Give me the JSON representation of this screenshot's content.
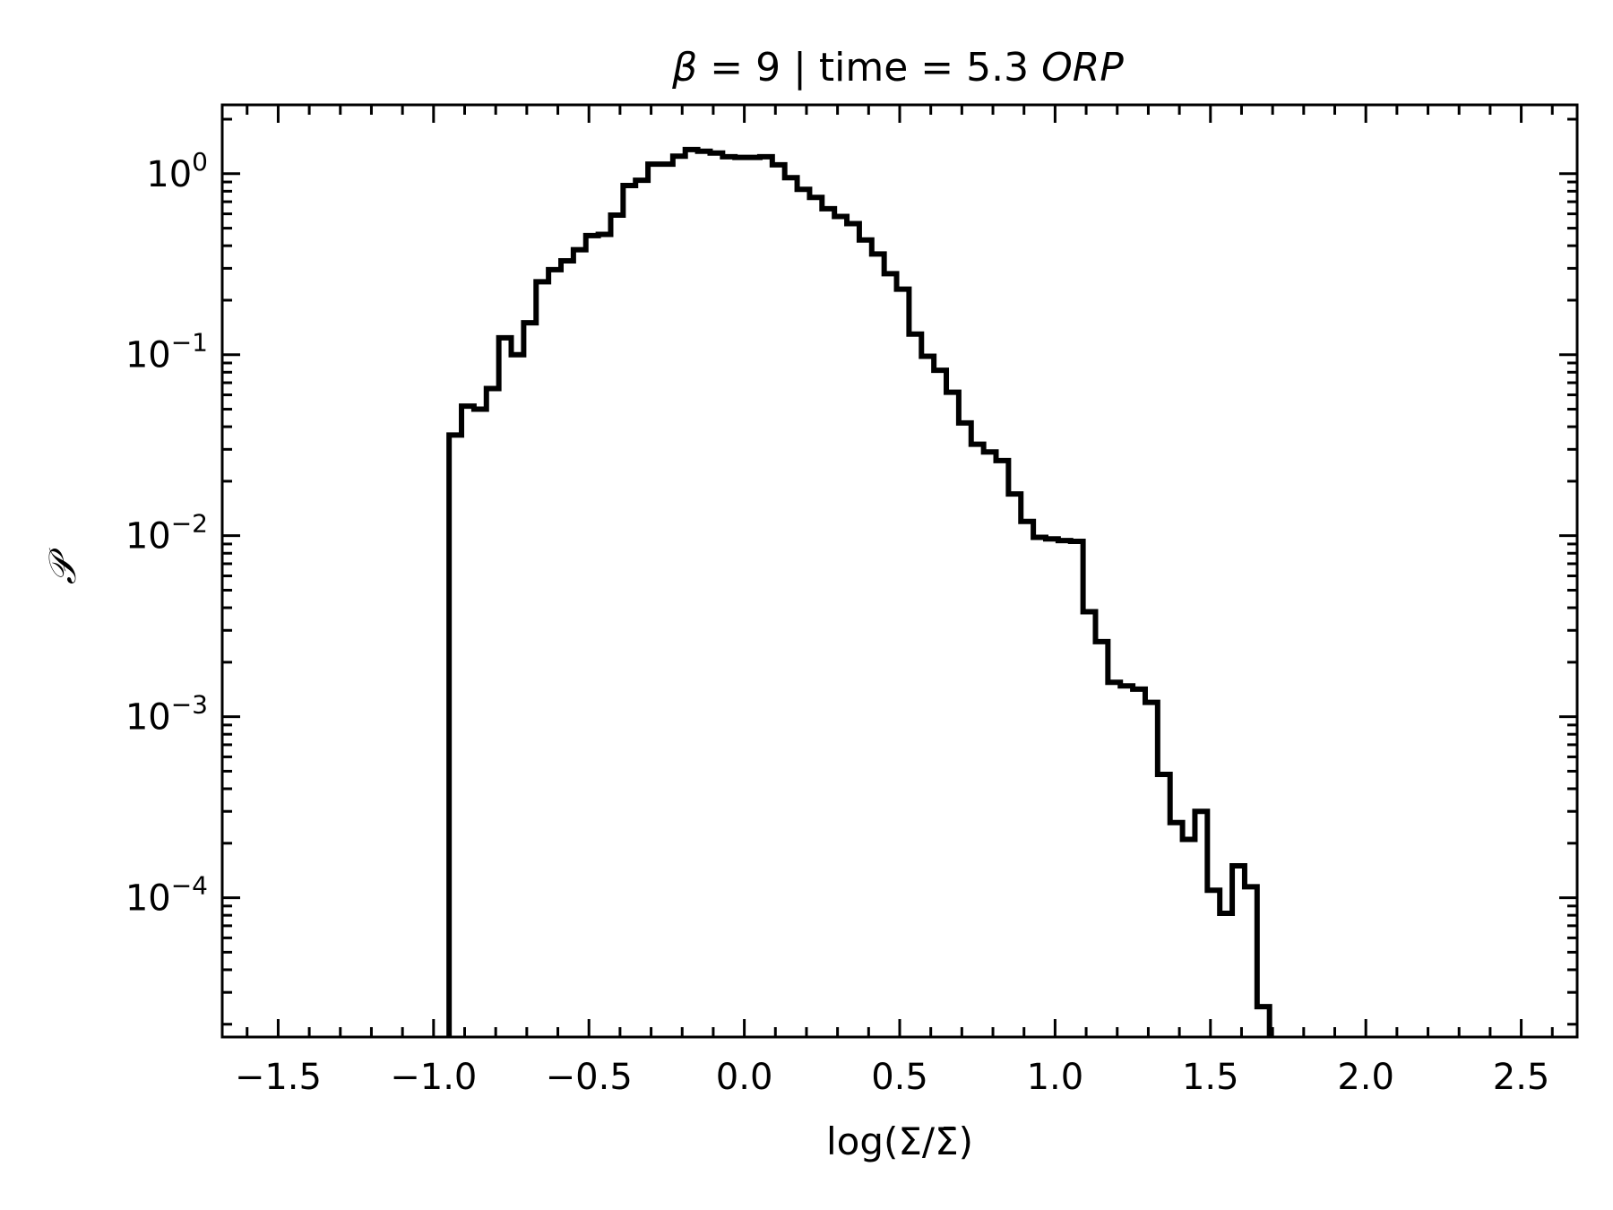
{
  "chart_data": {
    "type": "histogram",
    "title_parts": [
      "β",
      " = 9 | time = 5.3 ",
      "ORP"
    ],
    "xlabel": "log(Σ/Σ̄)",
    "ylabel": "𝒫",
    "xlim": [
      -1.68,
      2.68
    ],
    "ylim": [
      1.7e-05,
      2.4
    ],
    "yscale": "log",
    "x_ticks": [
      -1.5,
      -1.0,
      -0.5,
      0.0,
      0.5,
      1.0,
      1.5,
      2.0,
      2.5
    ],
    "x_tick_labels": [
      "−1.5",
      "−1.0",
      "−0.5",
      "0.0",
      "0.5",
      "1.0",
      "1.5",
      "2.0",
      "2.5"
    ],
    "y_ticks": [
      1,
      0.1,
      0.01,
      0.001,
      0.0001
    ],
    "y_tick_labels": [
      {
        "base": "10",
        "exp": "0"
      },
      {
        "base": "10",
        "exp": "−1"
      },
      {
        "base": "10",
        "exp": "−2"
      },
      {
        "base": "10",
        "exp": "−3"
      },
      {
        "base": "10",
        "exp": "−4"
      }
    ],
    "grid": false,
    "line_color": "#000000",
    "bin_width": 0.04,
    "bin_start": -0.95,
    "values": [
      0.036,
      0.052,
      0.05,
      0.065,
      0.124,
      0.1,
      0.15,
      0.253,
      0.295,
      0.33,
      0.38,
      0.455,
      0.462,
      0.59,
      0.86,
      0.92,
      1.13,
      1.13,
      1.25,
      1.36,
      1.33,
      1.3,
      1.24,
      1.23,
      1.23,
      1.24,
      1.12,
      0.95,
      0.82,
      0.74,
      0.64,
      0.58,
      0.53,
      0.43,
      0.36,
      0.28,
      0.23,
      0.13,
      0.098,
      0.082,
      0.062,
      0.042,
      0.032,
      0.029,
      0.026,
      0.017,
      0.012,
      0.0098,
      0.0096,
      0.0094,
      0.0093,
      0.0038,
      0.0026,
      0.00155,
      0.00148,
      0.00142,
      0.0012,
      0.00048,
      0.00026,
      0.00021,
      0.0003,
      0.00011,
      8.2e-05,
      0.00015,
      0.000115,
      2.5e-05
    ]
  }
}
